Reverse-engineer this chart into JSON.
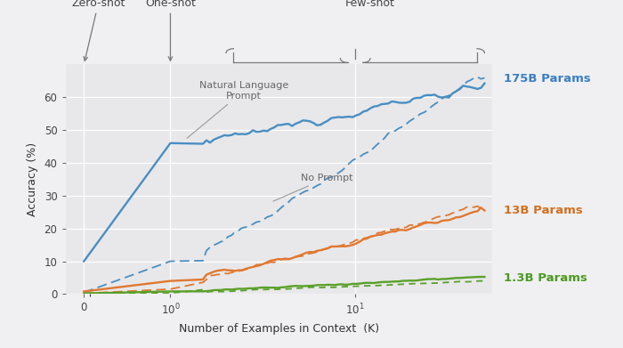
{
  "xlabel": "Number of Examples in Context  (K)",
  "ylabel": "Accuracy (%)",
  "fig_bg": "#f0f0f2",
  "plot_bg": "#e8e8ea",
  "colors": {
    "blue": "#4a8ec2",
    "orange": "#e07830",
    "green": "#5aa02a"
  },
  "right_labels": [
    {
      "text": "175B Params",
      "y": 65.5,
      "color": "#3a7ec0"
    },
    {
      "text": "13B Params",
      "y": 25.5,
      "color": "#d07020"
    },
    {
      "text": "1.3B Params",
      "y": 4.8,
      "color": "#4a9a20"
    }
  ],
  "ylim": [
    0,
    70
  ],
  "yticks": [
    0,
    10,
    20,
    30,
    40,
    50,
    60
  ],
  "annotation_color": "#777777",
  "prompt_label_color": "#666666"
}
